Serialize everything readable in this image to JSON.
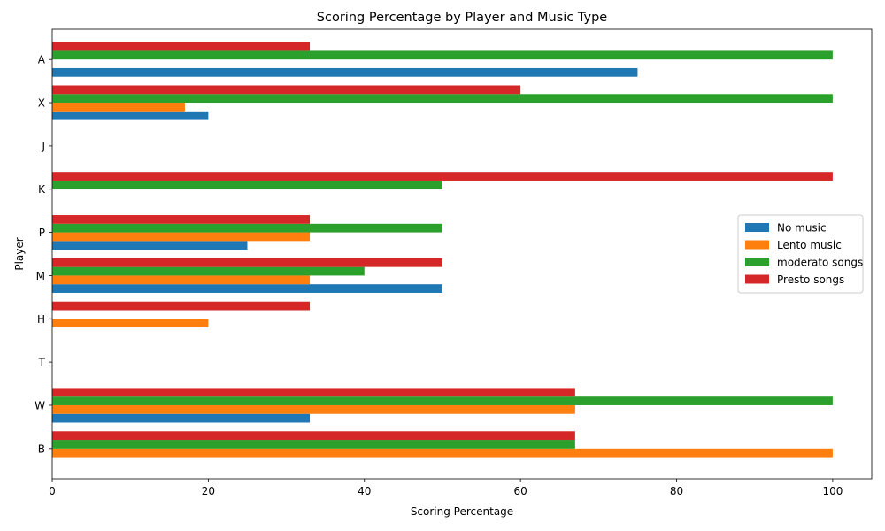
{
  "chart_data": {
    "type": "bar",
    "orientation": "horizontal",
    "title": "Scoring Percentage by Player and Music Type",
    "xlabel": "Scoring Percentage",
    "ylabel": "Player",
    "xlim": [
      0,
      105
    ],
    "xticks": [
      0,
      20,
      40,
      60,
      80,
      100
    ],
    "categories": [
      "B",
      "W",
      "T",
      "H",
      "M",
      "P",
      "K",
      "J",
      "X",
      "A"
    ],
    "series": [
      {
        "name": "No music",
        "color": "#1f77b4",
        "values": [
          0,
          33,
          0,
          0,
          50,
          25,
          0,
          0,
          20,
          75
        ]
      },
      {
        "name": "Lento music",
        "color": "#ff7f0e",
        "values": [
          100,
          67,
          0,
          20,
          33,
          33,
          0,
          0,
          17,
          0
        ]
      },
      {
        "name": "moderato songs",
        "color": "#2ca02c",
        "values": [
          67,
          100,
          0,
          0,
          40,
          50,
          50,
          0,
          100,
          100
        ]
      },
      {
        "name": "Presto songs",
        "color": "#d62728",
        "values": [
          67,
          67,
          0,
          33,
          50,
          33,
          100,
          0,
          60,
          33
        ]
      }
    ],
    "legend_position": "center-right",
    "grid": false
  }
}
